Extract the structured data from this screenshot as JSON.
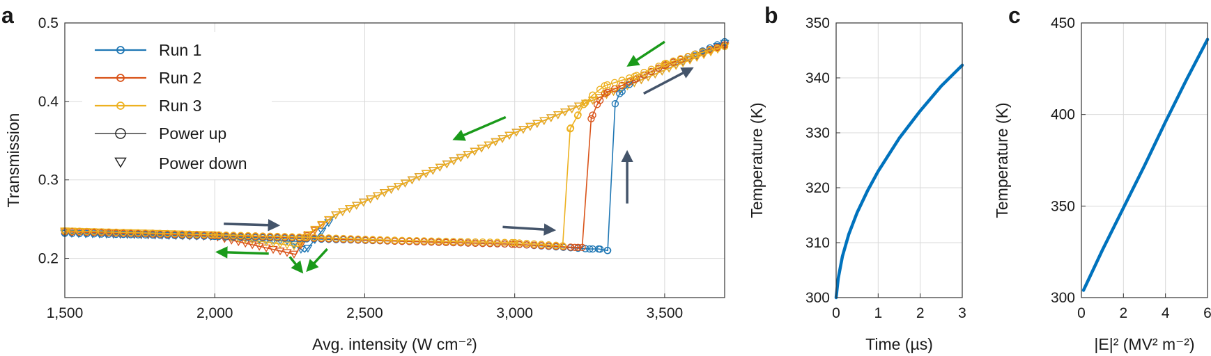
{
  "chart_data": [
    {
      "panel": "a",
      "type": "line",
      "title": "",
      "xlabel": "Avg. intensity (W cm⁻²)",
      "ylabel": "Transmission",
      "xlim": [
        1500,
        3700
      ],
      "ylim": [
        0.15,
        0.5
      ],
      "xticks": [
        1500,
        2000,
        2500,
        3000,
        3500
      ],
      "xtick_labels": [
        "1,500",
        "2,000",
        "2,500",
        "3,000",
        "3,500"
      ],
      "yticks": [
        0.2,
        0.3,
        0.4,
        0.5
      ],
      "ytick_labels": [
        "0.2",
        "0.3",
        "0.4",
        "0.5"
      ],
      "grid": true,
      "legend_position": "top-left",
      "legend": [
        "Run 1",
        "Run 2",
        "Run 3",
        "Power up",
        "Power down"
      ],
      "series": [
        {
          "name": "Run 1",
          "color": "#1f77b4",
          "up": {
            "x": [
              1500,
              2000,
              2300,
              2600,
              3000,
              3250,
              3280,
              3310,
              3335,
              3350,
              3400,
              3500,
              3600,
              3700
            ],
            "y": [
              0.232,
              0.228,
              0.225,
              0.222,
              0.218,
              0.212,
              0.212,
              0.21,
              0.397,
              0.41,
              0.428,
              0.446,
              0.46,
              0.476
            ]
          },
          "down": {
            "x": [
              3700,
              3500,
              3000,
              2600,
              2400,
              2300,
              2250,
              2000,
              1500
            ],
            "y": [
              0.474,
              0.44,
              0.36,
              0.29,
              0.255,
              0.208,
              0.222,
              0.228,
              0.232
            ]
          }
        },
        {
          "name": "Run 2",
          "color": "#d95319",
          "up": {
            "x": [
              1500,
              2000,
              2300,
              2600,
              3000,
              3200,
              3225,
              3255,
              3275,
              3300,
              3400,
              3500,
              3600,
              3700
            ],
            "y": [
              0.234,
              0.229,
              0.226,
              0.222,
              0.218,
              0.214,
              0.214,
              0.378,
              0.396,
              0.41,
              0.428,
              0.446,
              0.46,
              0.472
            ]
          },
          "down": {
            "x": [
              3700,
              3500,
              3000,
              2600,
              2400,
              2300,
              2270,
              2000,
              1500
            ],
            "y": [
              0.472,
              0.44,
              0.36,
              0.29,
              0.255,
              0.226,
              0.205,
              0.228,
              0.234
            ]
          }
        },
        {
          "name": "Run 3",
          "color": "#edb120",
          "up": {
            "x": [
              1500,
              2000,
              2300,
              2600,
              3000,
              3160,
              3185,
              3210,
              3230,
              3260,
              3300,
              3400,
              3500,
              3600,
              3700
            ],
            "y": [
              0.235,
              0.23,
              0.227,
              0.223,
              0.22,
              0.216,
              0.365,
              0.382,
              0.396,
              0.408,
              0.42,
              0.432,
              0.448,
              0.46,
              0.47
            ]
          },
          "down": {
            "x": [
              3700,
              3500,
              3000,
              2600,
              2400,
              2300,
              2280,
              2000,
              1500
            ],
            "y": [
              0.47,
              0.44,
              0.36,
              0.29,
              0.255,
              0.228,
              0.215,
              0.23,
              0.235
            ]
          }
        }
      ],
      "annotations": [
        {
          "type": "arrow",
          "color": "#44546a",
          "from": [
            2030,
            0.244
          ],
          "to": [
            2210,
            0.242
          ]
        },
        {
          "type": "arrow",
          "color": "#44546a",
          "from": [
            2960,
            0.24
          ],
          "to": [
            3130,
            0.236
          ]
        },
        {
          "type": "arrow",
          "color": "#44546a",
          "from": [
            3375,
            0.27
          ],
          "to": [
            3375,
            0.335
          ]
        },
        {
          "type": "arrow",
          "color": "#44546a",
          "from": [
            3430,
            0.41
          ],
          "to": [
            3590,
            0.442
          ]
        },
        {
          "type": "arrow",
          "color": "#1a9a1a",
          "from": [
            3500,
            0.476
          ],
          "to": [
            3380,
            0.446
          ]
        },
        {
          "type": "arrow",
          "color": "#1a9a1a",
          "from": [
            2970,
            0.38
          ],
          "to": [
            2800,
            0.352
          ]
        },
        {
          "type": "arrow",
          "color": "#1a9a1a",
          "from": [
            2180,
            0.206
          ],
          "to": [
            2010,
            0.208
          ]
        },
        {
          "type": "arrow",
          "color": "#1a9a1a",
          "from": [
            2250,
            0.202
          ],
          "to": [
            2290,
            0.183
          ]
        },
        {
          "type": "arrow",
          "color": "#1a9a1a",
          "from": [
            2375,
            0.212
          ],
          "to": [
            2310,
            0.185
          ]
        }
      ]
    },
    {
      "panel": "b",
      "type": "line",
      "title": "",
      "xlabel": "Time (µs)",
      "ylabel": "Temperature (K)",
      "xlim": [
        0,
        3
      ],
      "ylim": [
        300,
        350
      ],
      "xticks": [
        0,
        1,
        2,
        3
      ],
      "xtick_labels": [
        "0",
        "1",
        "2",
        "3"
      ],
      "yticks": [
        300,
        310,
        320,
        330,
        340,
        350
      ],
      "ytick_labels": [
        "300",
        "310",
        "320",
        "330",
        "340",
        "350"
      ],
      "grid": true,
      "series": [
        {
          "name": "",
          "color": "#0072bd",
          "x": [
            0,
            0.05,
            0.15,
            0.3,
            0.5,
            0.75,
            1.0,
            1.5,
            2.0,
            2.5,
            3.0
          ],
          "y": [
            300,
            303.5,
            307.5,
            311.5,
            315.5,
            319.5,
            323,
            329,
            334,
            338.5,
            342.3
          ]
        }
      ]
    },
    {
      "panel": "c",
      "type": "line",
      "title": "",
      "xlabel": "|E|² (MV² m⁻²)",
      "ylabel": "Temperature (K)",
      "xlim": [
        0,
        6
      ],
      "ylim": [
        300,
        450
      ],
      "xticks": [
        0,
        2,
        4,
        6
      ],
      "xtick_labels": [
        "0",
        "2",
        "4",
        "6"
      ],
      "yticks": [
        300,
        350,
        400,
        450
      ],
      "ytick_labels": [
        "300",
        "350",
        "400",
        "450"
      ],
      "grid": true,
      "series": [
        {
          "name": "",
          "color": "#0072bd",
          "x": [
            0.1,
            1,
            2,
            3,
            4,
            5,
            6
          ],
          "y": [
            304,
            326,
            349,
            372,
            396,
            419,
            441
          ]
        }
      ]
    }
  ]
}
